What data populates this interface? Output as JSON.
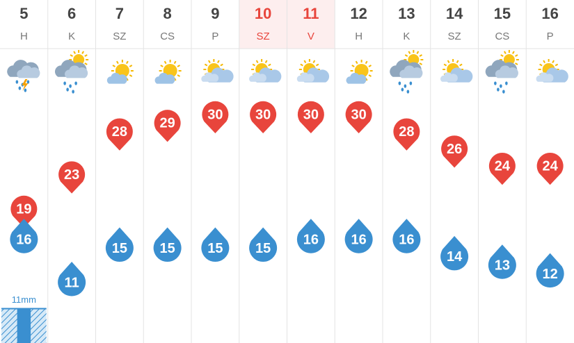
{
  "chart_data": {
    "type": "weather",
    "categories": [
      "5",
      "6",
      "7",
      "8",
      "9",
      "10",
      "11",
      "12",
      "13",
      "14",
      "15",
      "16"
    ],
    "weekdays": [
      "H",
      "K",
      "SZ",
      "CS",
      "P",
      "SZ",
      "V",
      "H",
      "K",
      "SZ",
      "CS",
      "P"
    ],
    "weekend": [
      false,
      false,
      false,
      false,
      false,
      true,
      true,
      false,
      false,
      false,
      false,
      false
    ],
    "icons": [
      "storm",
      "rain",
      "sunny",
      "sunny",
      "partly",
      "partly",
      "partly",
      "sunny",
      "rain",
      "partly",
      "rain",
      "partly"
    ],
    "series": [
      {
        "name": "max",
        "color": "#e8453c",
        "values": [
          19,
          23,
          28,
          29,
          30,
          30,
          30,
          30,
          28,
          26,
          24,
          24
        ]
      },
      {
        "name": "min",
        "color": "#3a8fd0",
        "values": [
          16,
          11,
          15,
          15,
          15,
          15,
          16,
          16,
          16,
          14,
          13,
          12
        ]
      }
    ],
    "precipitation": {
      "color": "#3a8fd0",
      "values": [
        11,
        null,
        null,
        null,
        null,
        null,
        null,
        null,
        null,
        null,
        null,
        null
      ],
      "value_labels": [
        "11mm",
        null,
        null,
        null,
        null,
        null,
        null,
        null,
        null,
        null,
        null,
        null
      ]
    }
  }
}
